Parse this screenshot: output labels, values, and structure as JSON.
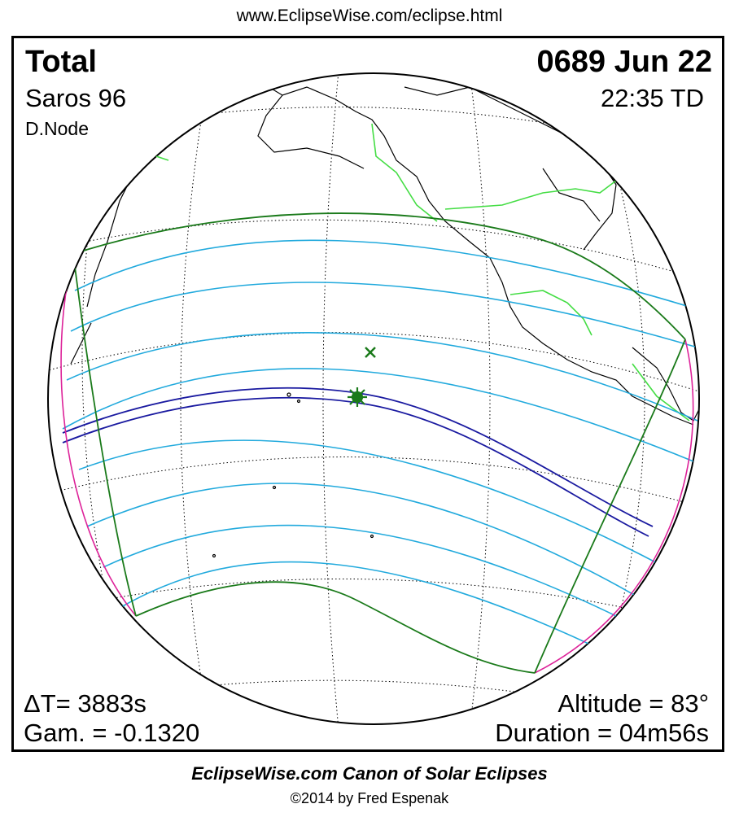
{
  "header": {
    "url": "www.EclipseWise.com/eclipse.html"
  },
  "eclipse": {
    "type": "Total",
    "date": "0689 Jun 22",
    "saros": "Saros  96",
    "time": "22:35 TD",
    "node": "D.Node",
    "delta_t": "ΔT=   3883s",
    "gamma": "Gam. = -0.1320",
    "altitude": "Altitude = 83°",
    "duration": "Duration = 04m56s"
  },
  "footer": {
    "canon": "EclipseWise.com Canon of Solar Eclipses",
    "copyright": "©2014 by Fred Espenak"
  },
  "colors": {
    "penumbra_limits": "#1a7a1a",
    "partial_isolines": "#22aadd",
    "central_path": "#1a1aa0",
    "rise_set_curves": "#dd2299",
    "borders": "#44dd44",
    "coastlines": "#000000",
    "grid": "#000000"
  },
  "markers": {
    "greatest_eclipse": "star-marker",
    "subsolar_point": "x-marker"
  }
}
